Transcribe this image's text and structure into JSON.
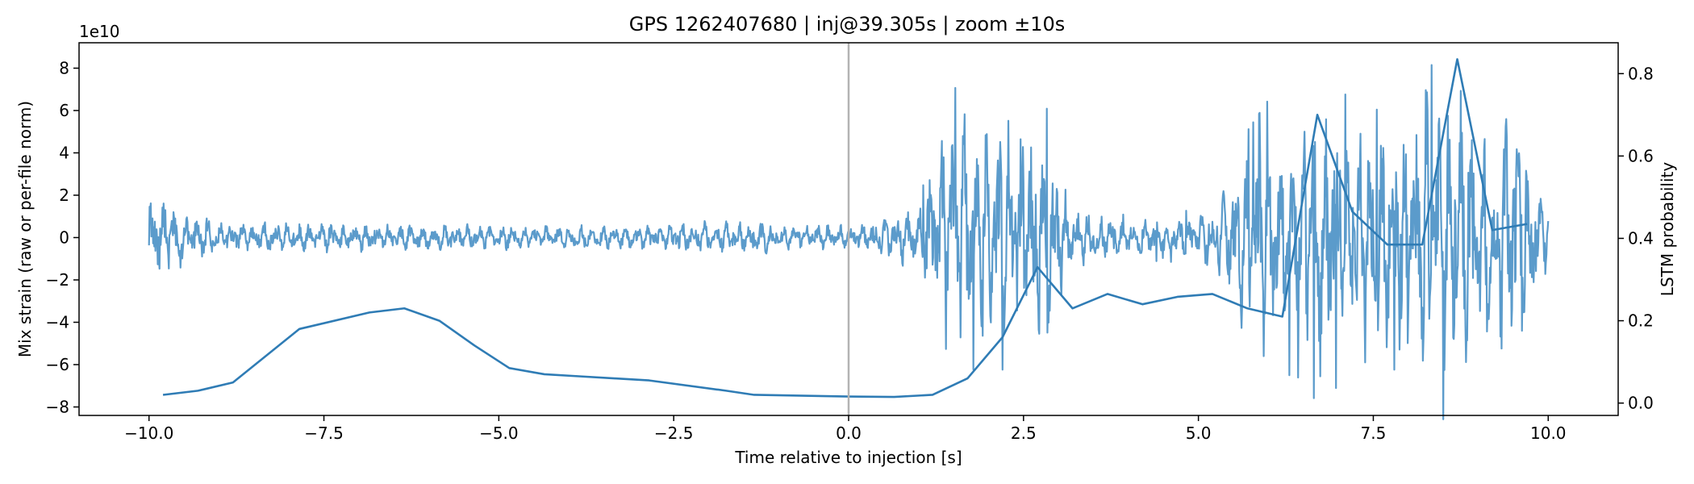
{
  "chart_data": {
    "type": "line",
    "title": "GPS 1262407680 | inj@39.305s | zoom ±10s",
    "xlabel": "Time relative to injection [s]",
    "ylabel_left": "Mix strain (raw or per-file norm)",
    "ylabel_right": "LSTM probability",
    "left_scale_label": "1e10",
    "xlim": [
      -11,
      11
    ],
    "ylim_left": [
      -8.4,
      9.2
    ],
    "ylim_right": [
      -0.03,
      0.875
    ],
    "x_ticks": [
      -10.0,
      -7.5,
      -5.0,
      -2.5,
      0.0,
      2.5,
      5.0,
      7.5,
      10.0
    ],
    "x_tick_labels": [
      "−10.0",
      "−7.5",
      "−5.0",
      "−2.5",
      "0.0",
      "2.5",
      "5.0",
      "7.5",
      "10.0"
    ],
    "y_left_ticks": [
      -8,
      -6,
      -4,
      -2,
      0,
      2,
      4,
      6,
      8
    ],
    "y_left_tick_labels": [
      "−8",
      "−6",
      "−4",
      "−2",
      "0",
      "2",
      "4",
      "6",
      "8"
    ],
    "y_right_ticks": [
      0.0,
      0.2,
      0.4,
      0.6,
      0.8
    ],
    "y_right_tick_labels": [
      "0.0",
      "0.2",
      "0.4",
      "0.6",
      "0.8"
    ],
    "injection_marker_x": 0.0,
    "colors": {
      "strain": "#5b9bcb",
      "probability": "#2f7cb5",
      "marker": "#b3b3b3"
    },
    "series": [
      {
        "axis": "left",
        "approximate_envelope": true,
        "envelope_times": [
          -10.0,
          -9.8,
          -9.5,
          -9.0,
          -7.0,
          -5.0,
          -3.0,
          -1.5,
          0.0,
          0.6,
          1.0,
          1.3,
          1.5,
          1.9,
          2.4,
          2.8,
          3.2,
          4.0,
          4.7,
          5.2,
          5.6,
          6.0,
          6.4,
          6.7,
          7.2,
          7.7,
          8.2,
          8.7,
          9.2,
          9.5,
          9.8,
          10.0
        ],
        "envelope_amplitudes": [
          1.6,
          1.9,
          1.2,
          0.7,
          0.6,
          0.5,
          0.5,
          0.7,
          0.5,
          0.9,
          1.3,
          4.0,
          5.5,
          4.5,
          5.0,
          5.0,
          1.2,
          0.8,
          0.9,
          1.2,
          3.5,
          5.0,
          5.0,
          6.0,
          5.0,
          4.5,
          6.0,
          7.0,
          4.0,
          6.0,
          3.0,
          1.0
        ]
      },
      {
        "axis": "right",
        "x": [
          -9.8,
          -9.3,
          -8.8,
          -7.85,
          -6.85,
          -6.35,
          -5.85,
          -5.35,
          -4.85,
          -4.35,
          -3.85,
          -3.35,
          -2.85,
          -1.75,
          -1.35,
          0.0,
          0.65,
          1.2,
          1.7,
          2.2,
          2.7,
          3.2,
          3.7,
          4.2,
          4.7,
          5.2,
          5.7,
          6.2,
          6.7,
          7.2,
          7.7,
          8.2,
          8.7,
          9.2,
          9.7
        ],
        "y": [
          0.02,
          0.03,
          0.05,
          0.18,
          0.22,
          0.23,
          0.2,
          0.14,
          0.085,
          0.07,
          0.065,
          0.06,
          0.055,
          0.03,
          0.02,
          0.016,
          0.015,
          0.02,
          0.06,
          0.16,
          0.33,
          0.23,
          0.265,
          0.24,
          0.258,
          0.265,
          0.23,
          0.21,
          0.7,
          0.465,
          0.385,
          0.385,
          0.835,
          0.42,
          0.435
        ]
      }
    ]
  }
}
